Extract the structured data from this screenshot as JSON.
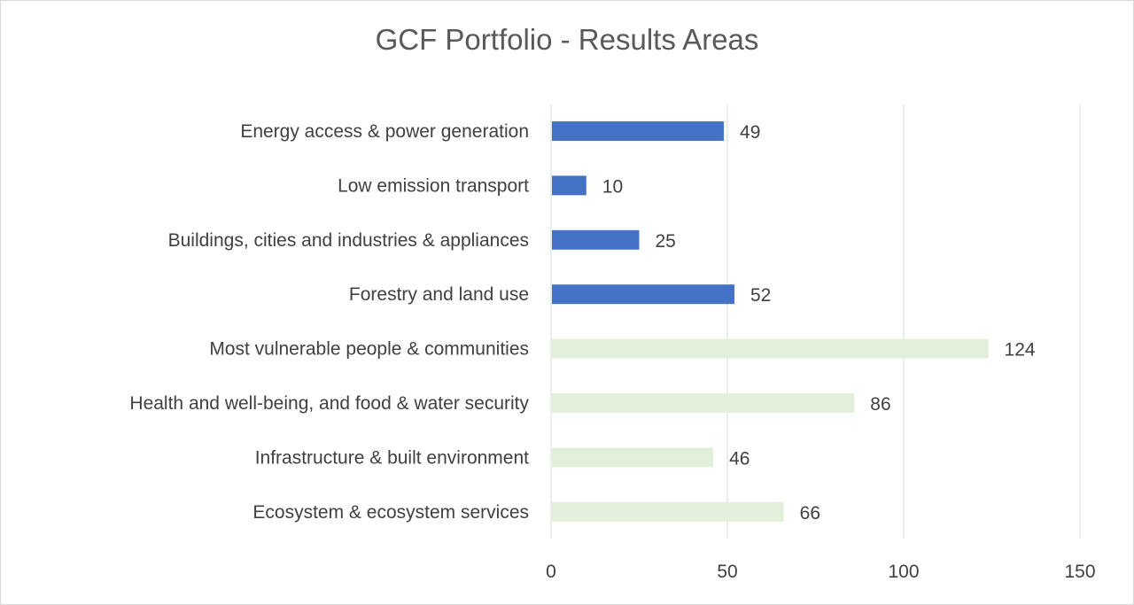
{
  "chart_data": {
    "type": "bar",
    "orientation": "horizontal",
    "title": "GCF Portfolio - Results Areas",
    "xlabel": "",
    "ylabel": "",
    "xlim": [
      0,
      150
    ],
    "xticks": [
      0,
      50,
      100,
      150
    ],
    "grid": "vertical",
    "legend": "none",
    "categories": [
      "Energy access & power generation",
      "Low emission transport",
      "Buildings, cities and industries & appliances",
      "Forestry and land use",
      "Most vulnerable people & communities",
      "Health and well-being, and food & water security",
      "Infrastructure & built environment",
      "Ecosystem & ecosystem services"
    ],
    "values": [
      49,
      10,
      25,
      52,
      124,
      86,
      46,
      66
    ],
    "bar_colors": [
      "#4472c4",
      "#4472c4",
      "#4472c4",
      "#4472c4",
      "#e2efda",
      "#e2efda",
      "#e2efda",
      "#e2efda"
    ],
    "data_labels": [
      "49",
      "10",
      "25",
      "52",
      "124",
      "86",
      "46",
      "66"
    ]
  },
  "colors": {
    "mitigation": "#4472c4",
    "adaptation": "#e2efda",
    "grid": "#d9d9d9",
    "text": "#404040",
    "title": "#595959"
  }
}
